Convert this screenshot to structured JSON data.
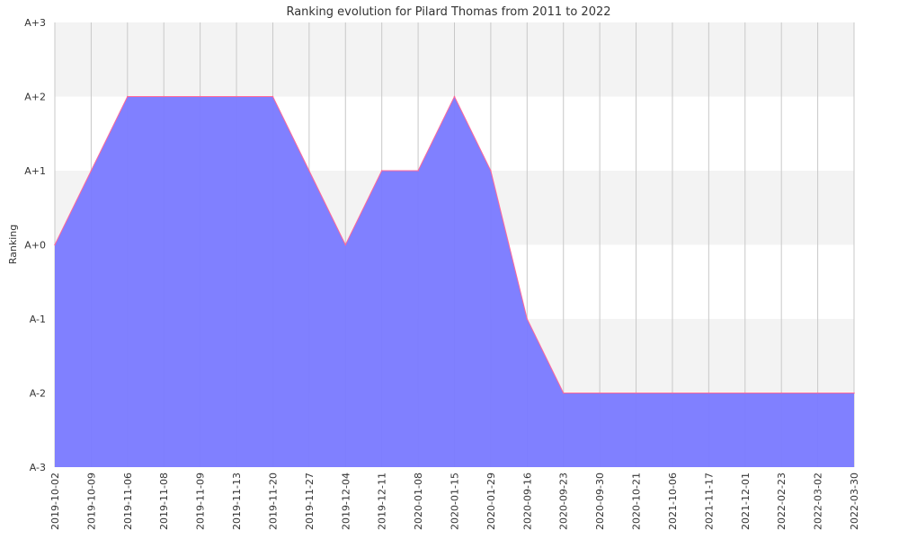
{
  "chart_data": {
    "type": "area",
    "title": "Ranking evolution for Pilard Thomas from 2011 to 2022",
    "xlabel": "",
    "ylabel": "Ranking",
    "y_tick_labels": [
      "A-3",
      "A-2",
      "A-1",
      "A+0",
      "A+1",
      "A+2",
      "A+3"
    ],
    "ylim": [
      -3,
      3
    ],
    "grid": true,
    "legend": "none",
    "categories": [
      "2019-10-02",
      "2019-10-09",
      "2019-11-06",
      "2019-11-08",
      "2019-11-09",
      "2019-11-13",
      "2019-11-20",
      "2019-11-27",
      "2019-12-04",
      "2019-12-11",
      "2020-01-08",
      "2020-01-15",
      "2020-01-29",
      "2020-09-16",
      "2020-09-23",
      "2020-09-30",
      "2020-10-21",
      "2021-10-06",
      "2021-11-17",
      "2021-12-01",
      "2022-02-23",
      "2022-03-02",
      "2022-03-30"
    ],
    "series": [
      {
        "values": [
          0,
          1,
          2,
          2,
          2,
          2,
          2,
          1,
          0,
          1,
          1,
          2,
          1,
          -1,
          -2,
          -2,
          -2,
          -2,
          -2,
          -2,
          -2,
          -2,
          -2
        ],
        "fill_color": "#7b7bff",
        "line_color": "#ff6699"
      }
    ]
  }
}
